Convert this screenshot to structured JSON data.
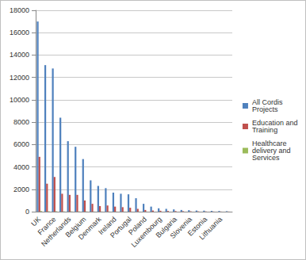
{
  "chart_data": {
    "type": "bar",
    "categories": [
      "UK",
      null,
      "France",
      null,
      "Netherlands",
      null,
      "Belgium",
      null,
      "Denmark",
      null,
      "Ireland",
      null,
      "Portugal",
      null,
      "Poland",
      null,
      "Luxembourg",
      null,
      "Bulgaria",
      null,
      "Slovenia",
      null,
      "Estonia",
      null,
      "Lithuania",
      null
    ],
    "series": [
      {
        "name": "All Cordis Projects",
        "color": "#4f81bd",
        "values": [
          17000,
          13100,
          12800,
          8400,
          6300,
          5800,
          4700,
          2800,
          2300,
          2100,
          1700,
          1600,
          1550,
          1200,
          700,
          450,
          300,
          250,
          200,
          150,
          130,
          100,
          90,
          70,
          60,
          40
        ]
      },
      {
        "name": "Education and Training",
        "color": "#c0504d",
        "values": [
          4900,
          2500,
          3100,
          1600,
          1500,
          1500,
          1000,
          700,
          500,
          550,
          450,
          400,
          350,
          250,
          150,
          100,
          80,
          60,
          50,
          40,
          30,
          25,
          20,
          15,
          10,
          10
        ]
      },
      {
        "name": "Healthcare delivery and Services",
        "color": "#9bbb59",
        "values": [
          50,
          30,
          30,
          20,
          20,
          20,
          15,
          10,
          10,
          10,
          5,
          5,
          5,
          5,
          5,
          0,
          0,
          0,
          0,
          0,
          0,
          0,
          0,
          0,
          0,
          0
        ]
      }
    ],
    "ylim": [
      0,
      18000
    ],
    "yticks": [
      0,
      2000,
      4000,
      6000,
      8000,
      10000,
      12000,
      14000,
      16000,
      18000
    ],
    "grid": true,
    "legend": "right"
  }
}
